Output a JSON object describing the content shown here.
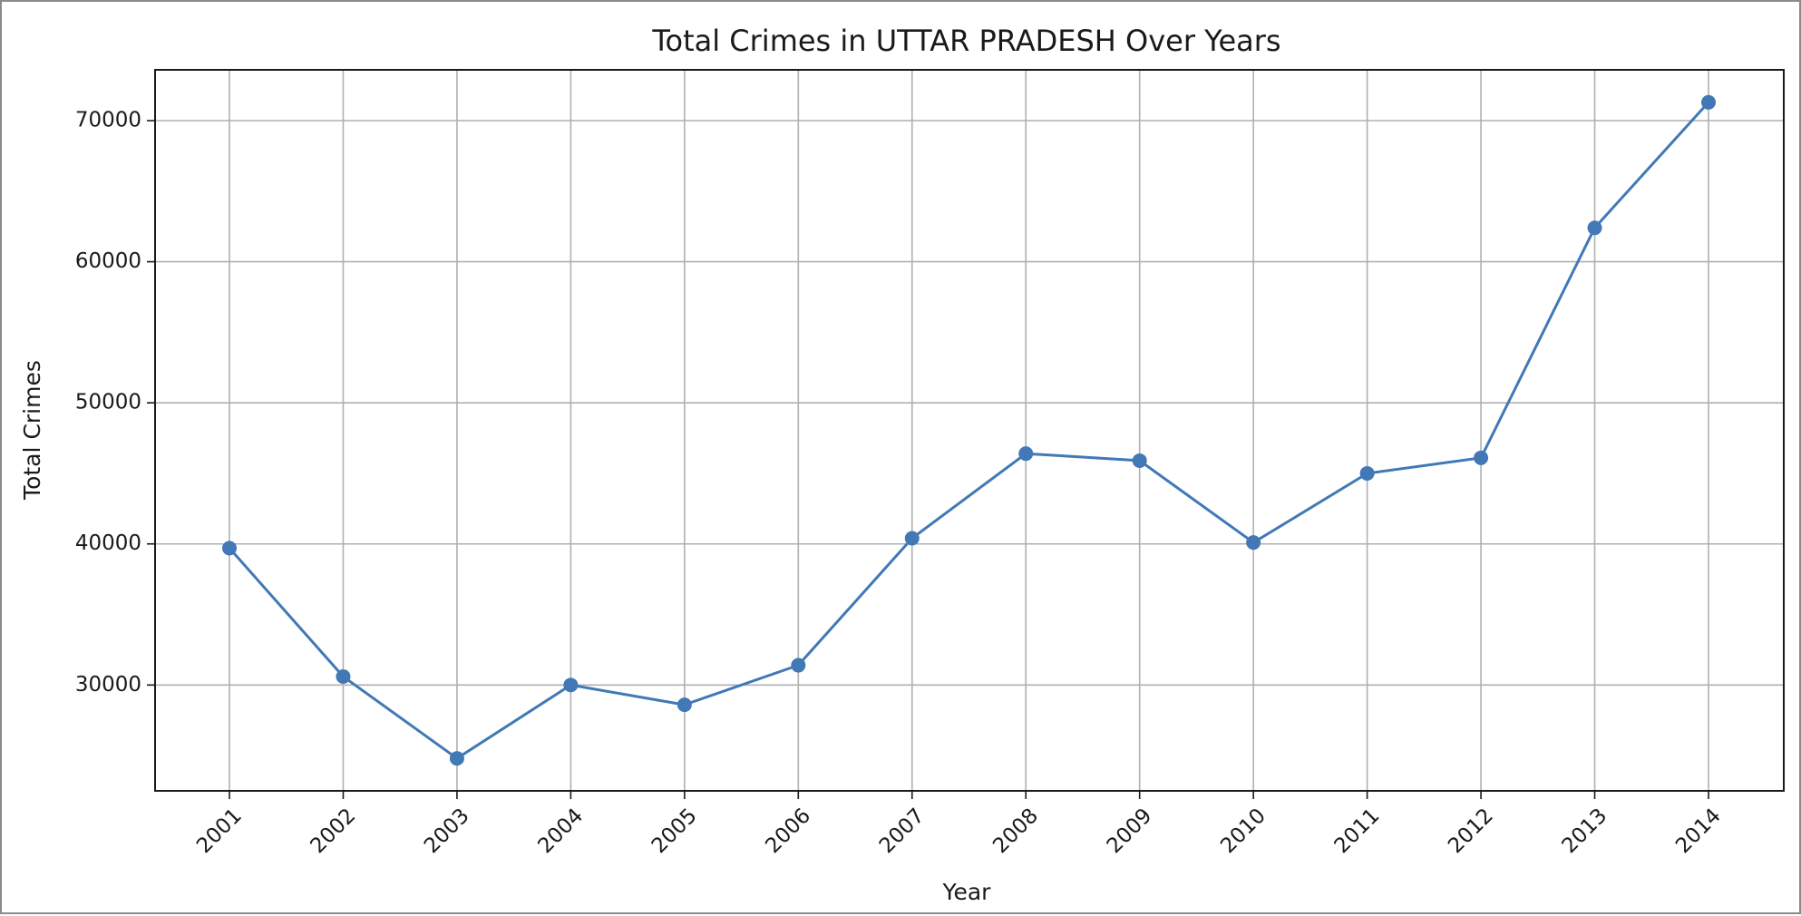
{
  "chart_data": {
    "type": "line",
    "title": "Total Crimes in UTTAR PRADESH Over Years",
    "xlabel": "Year",
    "ylabel": "Total Crimes",
    "x": [
      "2001",
      "2002",
      "2003",
      "2004",
      "2005",
      "2006",
      "2007",
      "2008",
      "2009",
      "2010",
      "2011",
      "2012",
      "2013",
      "2014"
    ],
    "series": [
      {
        "values": [
          39700,
          30600,
          24800,
          30000,
          28600,
          31400,
          40400,
          46400,
          45900,
          40100,
          45000,
          46100,
          62400,
          71300
        ],
        "color": "#4178b5",
        "marker": "circle"
      }
    ],
    "yticks": [
      "30000",
      "40000",
      "50000",
      "60000",
      "70000"
    ],
    "ylim": [
      22500,
      73600
    ],
    "grid": true,
    "legend": "none",
    "xtick_rotation": -45
  }
}
